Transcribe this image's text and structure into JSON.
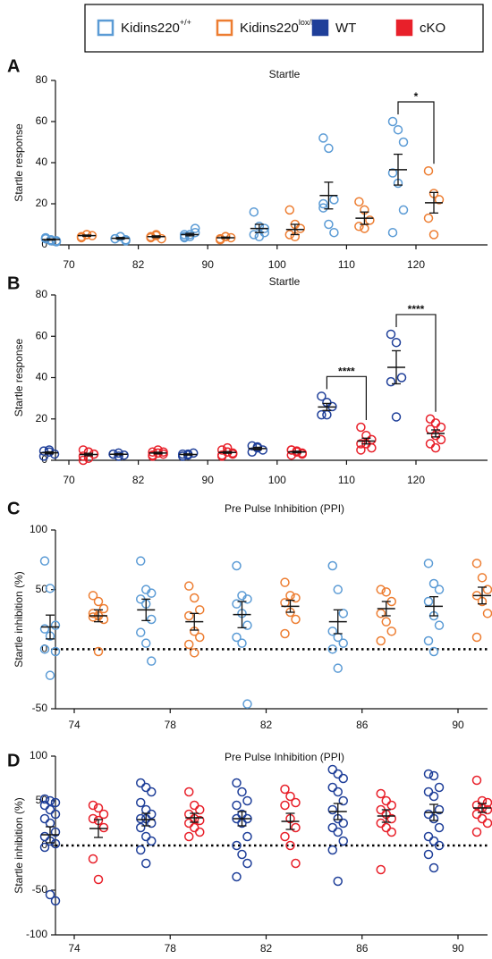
{
  "legend": [
    {
      "text": "Kidins220",
      "sup": "+/+",
      "color": "#5b9bd5",
      "filled": false
    },
    {
      "text": "Kidins220",
      "sup": "lox/lox",
      "color": "#ed7d31",
      "filled": false
    },
    {
      "text": "WT",
      "color": "#1f3f99",
      "filled": true
    },
    {
      "text": "cKO",
      "color": "#e8202a",
      "filled": true
    }
  ],
  "chart_data": [
    {
      "type": "strip",
      "letter": "A",
      "title": "Startle",
      "ylabel": "Startle response",
      "categories": [
        "70",
        "82",
        "90",
        "100",
        "110",
        "120"
      ],
      "ylim": [
        0,
        80
      ],
      "yticks": [
        0,
        20,
        40,
        60,
        80
      ],
      "zero_line": false,
      "series": [
        {
          "color": "#5b9bd5",
          "points": [
            [
              3,
              2,
              1.5,
              3.5,
              2.5,
              2,
              3
            ],
            [
              3,
              4,
              2.5,
              3,
              4,
              2
            ],
            [
              4,
              5,
              8,
              3.5,
              4,
              6,
              5
            ],
            [
              16,
              9,
              8,
              5,
              4,
              6
            ],
            [
              52,
              47,
              22,
              18,
              10,
              6,
              20
            ],
            [
              60,
              56,
              50,
              35,
              30,
              17,
              6
            ]
          ],
          "mean": [
            2.6,
            3.2,
            5,
            8,
            24,
            36.6
          ],
          "sem": [
            0.3,
            0.4,
            0.6,
            2,
            6.5,
            7.5
          ]
        },
        {
          "color": "#ed7d31",
          "points": [
            [
              4,
              5,
              4.5,
              3.5,
              5
            ],
            [
              4,
              5,
              3,
              3.5,
              4.5
            ],
            [
              3,
              4,
              3.5,
              2.5,
              4
            ],
            [
              17,
              10,
              8,
              5,
              4
            ],
            [
              21,
              17,
              12,
              9,
              8
            ],
            [
              36,
              25,
              22,
              13,
              5
            ]
          ],
          "mean": [
            4.5,
            4,
            3.5,
            7.5,
            13,
            20.5
          ],
          "sem": [
            0.3,
            0.4,
            0.3,
            2.5,
            3,
            5
          ]
        }
      ],
      "significance": [
        {
          "category": "120",
          "label": "*"
        }
      ]
    },
    {
      "type": "strip",
      "letter": "B",
      "title": "Startle",
      "ylabel": "Startle response",
      "categories": [
        "70",
        "82",
        "90",
        "100",
        "110",
        "120"
      ],
      "ylim": [
        0,
        80
      ],
      "yticks": [
        0,
        20,
        40,
        60,
        80
      ],
      "zero_line": false,
      "series": [
        {
          "color": "#1f3f99",
          "points": [
            [
              4.5,
              4,
              3,
              2,
              5
            ],
            [
              3,
              3.5,
              2.5,
              3,
              2
            ],
            [
              3,
              2.5,
              3.5,
              2,
              3
            ],
            [
              7,
              6.5,
              5,
              4,
              6
            ],
            [
              31,
              28,
              26,
              22,
              22
            ],
            [
              61,
              57,
              40,
              38,
              21
            ]
          ],
          "mean": [
            3.6,
            2.9,
            2.8,
            5.7,
            25.8,
            45
          ],
          "sem": [
            0.5,
            0.3,
            0.3,
            0.6,
            1.7,
            8
          ]
        },
        {
          "color": "#e8202a",
          "points": [
            [
              5,
              4,
              3,
              2,
              1,
              3,
              0,
              4
            ],
            [
              4,
              5,
              3,
              2,
              3.5,
              4,
              2.5
            ],
            [
              5,
              6,
              3,
              2,
              4,
              3.5,
              2.5,
              4
            ],
            [
              5,
              4.5,
              3,
              2.5,
              4,
              3.5,
              5
            ],
            [
              16,
              12,
              10,
              8,
              8,
              6,
              5
            ],
            [
              20,
              18,
              16,
              15,
              12,
              10,
              8,
              6
            ]
          ],
          "mean": [
            2.8,
            3.5,
            3.8,
            4,
            9.3,
            13
          ],
          "sem": [
            0.6,
            0.4,
            0.4,
            0.4,
            1.4,
            1.7
          ]
        }
      ],
      "significance": [
        {
          "category": "110",
          "label": "****"
        },
        {
          "category": "120",
          "label": "****"
        }
      ]
    },
    {
      "type": "strip",
      "letter": "C",
      "title": "Pre Pulse Inhibition (PPI)",
      "ylabel": "Startle inhibition (%)",
      "categories": [
        "74",
        "78",
        "82",
        "86",
        "90"
      ],
      "ylim": [
        -50,
        100
      ],
      "yticks": [
        -50,
        0,
        50,
        100
      ],
      "zero_line": true,
      "series": [
        {
          "color": "#5b9bd5",
          "points": [
            [
              74,
              51,
              20,
              17,
              11,
              -2,
              0,
              -22
            ],
            [
              74,
              50,
              47,
              42,
              38,
              25,
              14,
              5,
              -10
            ],
            [
              70,
              45,
              42,
              38,
              30,
              20,
              10,
              5,
              -46
            ],
            [
              70,
              50,
              30,
              15,
              10,
              5,
              0,
              -16
            ],
            [
              72,
              55,
              50,
              40,
              28,
              20,
              7,
              -2
            ]
          ],
          "mean": [
            18.6,
            33,
            29,
            23,
            36
          ],
          "sem": [
            10,
            9,
            11,
            10,
            8
          ]
        },
        {
          "color": "#ed7d31",
          "points": [
            [
              45,
              40,
              34,
              30,
              28,
              25,
              27,
              -2
            ],
            [
              53,
              43,
              33,
              28,
              15,
              10,
              4,
              -3
            ],
            [
              56,
              45,
              43,
              39,
              31,
              25,
              13
            ],
            [
              50,
              48,
              40,
              30,
              23,
              15,
              7
            ],
            [
              72,
              60,
              50,
              45,
              40,
              30,
              10
            ]
          ],
          "mean": [
            28,
            23,
            36,
            34,
            45
          ],
          "sem": [
            5,
            7,
            5,
            6,
            7
          ]
        }
      ],
      "significance": []
    },
    {
      "type": "strip",
      "letter": "D",
      "title": "Pre Pulse Inhibition (PPI)",
      "ylabel": "Startle inhibition (%)",
      "categories": [
        "74",
        "78",
        "82",
        "86",
        "90"
      ],
      "ylim": [
        -100,
        100
      ],
      "yticks": [
        -100,
        -50,
        0,
        50,
        100
      ],
      "zero_line": true,
      "series": [
        {
          "color": "#1f3f99",
          "points": [
            [
              52,
              50,
              48,
              45,
              40,
              35,
              30,
              25,
              15,
              10,
              5,
              2,
              -2,
              -55,
              -62
            ],
            [
              70,
              65,
              60,
              48,
              40,
              35,
              30,
              30,
              25,
              20,
              10,
              5,
              -5,
              -20
            ],
            [
              70,
              60,
              50,
              45,
              35,
              30,
              30,
              25,
              10,
              0,
              -10,
              -20,
              -35
            ],
            [
              85,
              80,
              75,
              65,
              60,
              50,
              40,
              30,
              25,
              20,
              15,
              5,
              -5,
              -40
            ],
            [
              80,
              78,
              65,
              60,
              55,
              40,
              35,
              30,
              20,
              10,
              5,
              0,
              -10,
              -25
            ]
          ],
          "mean": [
            12,
            29,
            30,
            38,
            37
          ],
          "sem": [
            9,
            7,
            8,
            9,
            9
          ]
        },
        {
          "color": "#e8202a",
          "points": [
            [
              45,
              42,
              35,
              30,
              28,
              20,
              -15,
              -38
            ],
            [
              60,
              45,
              40,
              35,
              30,
              28,
              25,
              20,
              15,
              10
            ],
            [
              63,
              55,
              48,
              45,
              30,
              20,
              10,
              0,
              -20
            ],
            [
              58,
              50,
              45,
              40,
              35,
              30,
              25,
              20,
              15,
              -27
            ],
            [
              73,
              50,
              48,
              45,
              42,
              40,
              35,
              30,
              25,
              15
            ]
          ],
          "mean": [
            19,
            31,
            27,
            33,
            42
          ],
          "sem": [
            10,
            5,
            9,
            7,
            5
          ]
        }
      ],
      "significance": []
    }
  ]
}
